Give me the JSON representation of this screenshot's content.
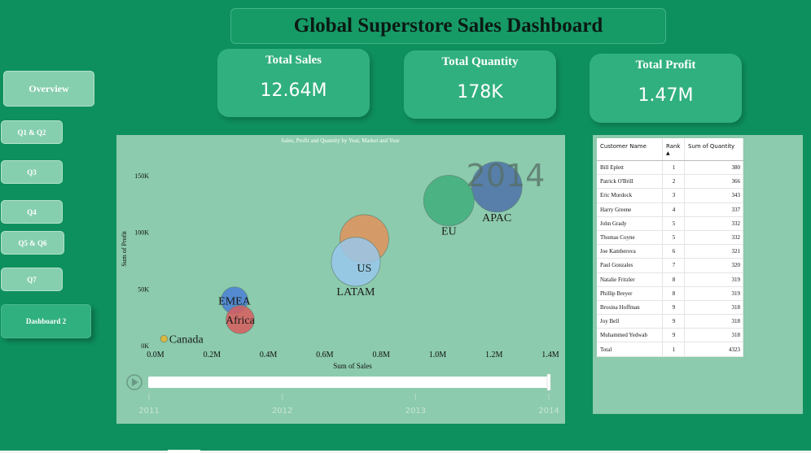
{
  "header": {
    "title": "Global Superstore Sales Dashboard"
  },
  "kpis": [
    {
      "label": "Total Sales",
      "value": "12.64M"
    },
    {
      "label": "Total Quantity",
      "value": "178K"
    },
    {
      "label": "Total Profit",
      "value": "1.47M"
    }
  ],
  "nav": [
    {
      "label": "Overview",
      "active": false
    },
    {
      "label": "Q1 & Q2",
      "active": false
    },
    {
      "label": "Q3",
      "active": false
    },
    {
      "label": "Q4",
      "active": false
    },
    {
      "label": "Q5 & Q6",
      "active": false
    },
    {
      "label": "Q7",
      "active": false
    },
    {
      "label": "Dashboard 2",
      "active": true
    }
  ],
  "chart_data": {
    "type": "scatter",
    "title": "Sales, Profit and Quantity by Year, Market and Year",
    "xlabel": "Sum of Sales",
    "ylabel": "Sum of Profit",
    "xlim": [
      0,
      1.4
    ],
    "ylim": [
      0,
      160
    ],
    "x_ticks": [
      "0.0M",
      "0.2M",
      "0.4M",
      "0.6M",
      "0.8M",
      "1.0M",
      "1.2M",
      "1.4M"
    ],
    "y_ticks": [
      "0K",
      "50K",
      "100K",
      "150K"
    ],
    "year_overlay": "2014",
    "points": [
      {
        "label": "APAC",
        "x": 1.21,
        "y": 140,
        "size": 1.0,
        "color": "#4e72a8",
        "label_pos": "below"
      },
      {
        "label": "EU",
        "x": 1.04,
        "y": 128,
        "size": 1.0,
        "color": "#3fae7c",
        "label_pos": "below"
      },
      {
        "label": "",
        "x": 0.74,
        "y": 94,
        "size": 0.97,
        "color": "#e0935c",
        "label_pos": "none"
      },
      {
        "label": "LATAM",
        "x": 0.71,
        "y": 74,
        "size": 0.97,
        "color": "#99c8ec",
        "label_pos": "below"
      },
      {
        "label": "US",
        "x": 0.74,
        "y": 69,
        "size": 0,
        "color": "#99c8ec",
        "label_pos": "center"
      },
      {
        "label": "EMEA",
        "x": 0.28,
        "y": 40,
        "size": 0.53,
        "color": "#4a80d6",
        "label_pos": "center"
      },
      {
        "label": "Africa",
        "x": 0.3,
        "y": 23,
        "size": 0.56,
        "color": "#d85d5d",
        "label_pos": "center"
      },
      {
        "label": "Canada",
        "x": 0.03,
        "y": 6,
        "size": 0.14,
        "color": "#e5b52b",
        "label_pos": "right"
      }
    ],
    "slider": {
      "years": [
        "2011",
        "2012",
        "2013",
        "2014"
      ],
      "current": "2014"
    }
  },
  "table": {
    "columns": [
      "Customer Name",
      "Rank",
      "Sum of Quantity"
    ],
    "rows": [
      [
        "Bill Eplett",
        "1",
        "380"
      ],
      [
        "Patrick O'Brill",
        "2",
        "366"
      ],
      [
        "Eric Murdock",
        "3",
        "343"
      ],
      [
        "Harry Greene",
        "4",
        "337"
      ],
      [
        "John Grady",
        "5",
        "332"
      ],
      [
        "Thomas Coyne",
        "5",
        "332"
      ],
      [
        "Joe Kamberova",
        "6",
        "321"
      ],
      [
        "Paul Gonzales",
        "7",
        "320"
      ],
      [
        "Natalie Fritzler",
        "8",
        "319"
      ],
      [
        "Phillip Breyer",
        "8",
        "319"
      ],
      [
        "Brosina Hoffman",
        "9",
        "318"
      ],
      [
        "Joy Bell",
        "9",
        "318"
      ],
      [
        "Muhammed Yedwab",
        "9",
        "318"
      ]
    ],
    "total": [
      "Total",
      "1",
      "4323"
    ]
  }
}
